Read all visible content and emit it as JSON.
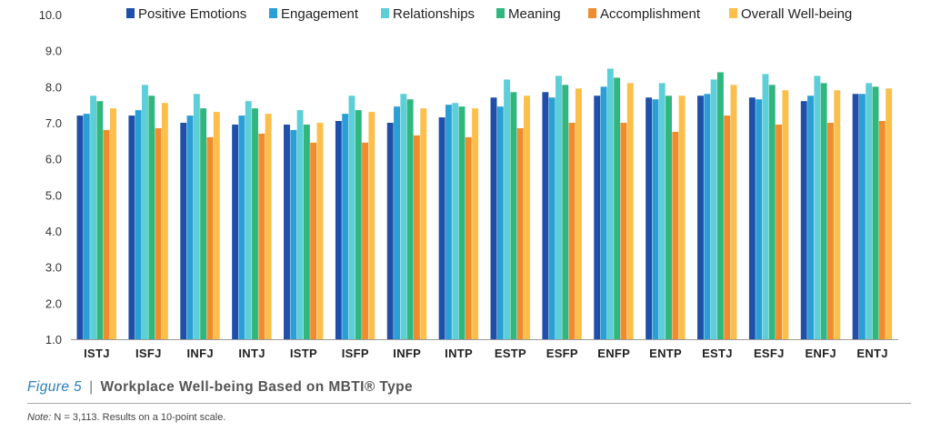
{
  "chart_data": {
    "type": "bar",
    "categories": [
      "ISTJ",
      "ISFJ",
      "INFJ",
      "INTJ",
      "ISTP",
      "ISFP",
      "INFP",
      "INTP",
      "ESTP",
      "ESFP",
      "ENFP",
      "ENTP",
      "ESTJ",
      "ESFJ",
      "ENFJ",
      "ENTJ"
    ],
    "ylim": [
      1.0,
      10.0
    ],
    "yticks": [
      "1.0",
      "2.0",
      "3.0",
      "4.0",
      "5.0",
      "6.0",
      "7.0",
      "8.0",
      "9.0",
      "10.0"
    ],
    "legend_position": "top",
    "grid": false,
    "series": [
      {
        "name": "Positive Emotions",
        "color": "#1f4fa8",
        "values": [
          7.2,
          7.2,
          7.0,
          6.95,
          6.95,
          7.05,
          7.0,
          7.15,
          7.7,
          7.85,
          7.75,
          7.7,
          7.75,
          7.7,
          7.6,
          7.8
        ]
      },
      {
        "name": "Engagement",
        "color": "#2a9fd6",
        "values": [
          7.25,
          7.35,
          7.2,
          7.2,
          6.8,
          7.25,
          7.45,
          7.5,
          7.45,
          7.7,
          8.0,
          7.65,
          7.8,
          7.65,
          7.75,
          7.8
        ]
      },
      {
        "name": "Relationships",
        "color": "#5ccfd8",
        "values": [
          7.75,
          8.05,
          7.8,
          7.6,
          7.35,
          7.75,
          7.8,
          7.55,
          8.2,
          8.3,
          8.5,
          8.1,
          8.2,
          8.35,
          8.3,
          8.1
        ]
      },
      {
        "name": "Meaning",
        "color": "#2fb77e",
        "values": [
          7.6,
          7.75,
          7.4,
          7.4,
          6.95,
          7.35,
          7.65,
          7.45,
          7.85,
          8.05,
          8.25,
          7.75,
          8.4,
          8.05,
          8.1,
          8.0
        ]
      },
      {
        "name": "Accomplishment",
        "color": "#f08c2e",
        "values": [
          6.8,
          6.85,
          6.6,
          6.7,
          6.45,
          6.45,
          6.65,
          6.6,
          6.85,
          7.0,
          7.0,
          6.75,
          7.2,
          6.95,
          7.0,
          7.05
        ]
      },
      {
        "name": "Overall Well-being",
        "color": "#fbbf4a",
        "values": [
          7.4,
          7.55,
          7.3,
          7.25,
          7.0,
          7.3,
          7.4,
          7.4,
          7.75,
          7.95,
          8.1,
          7.75,
          8.05,
          7.9,
          7.9,
          7.95
        ]
      }
    ]
  },
  "caption": {
    "figure_label": "Figure 5",
    "separator": "|",
    "title": "Workplace Well-being Based on MBTI® Type"
  },
  "note": {
    "label": "Note:",
    "text": "N = 3,113. Results on a 10-point scale."
  }
}
